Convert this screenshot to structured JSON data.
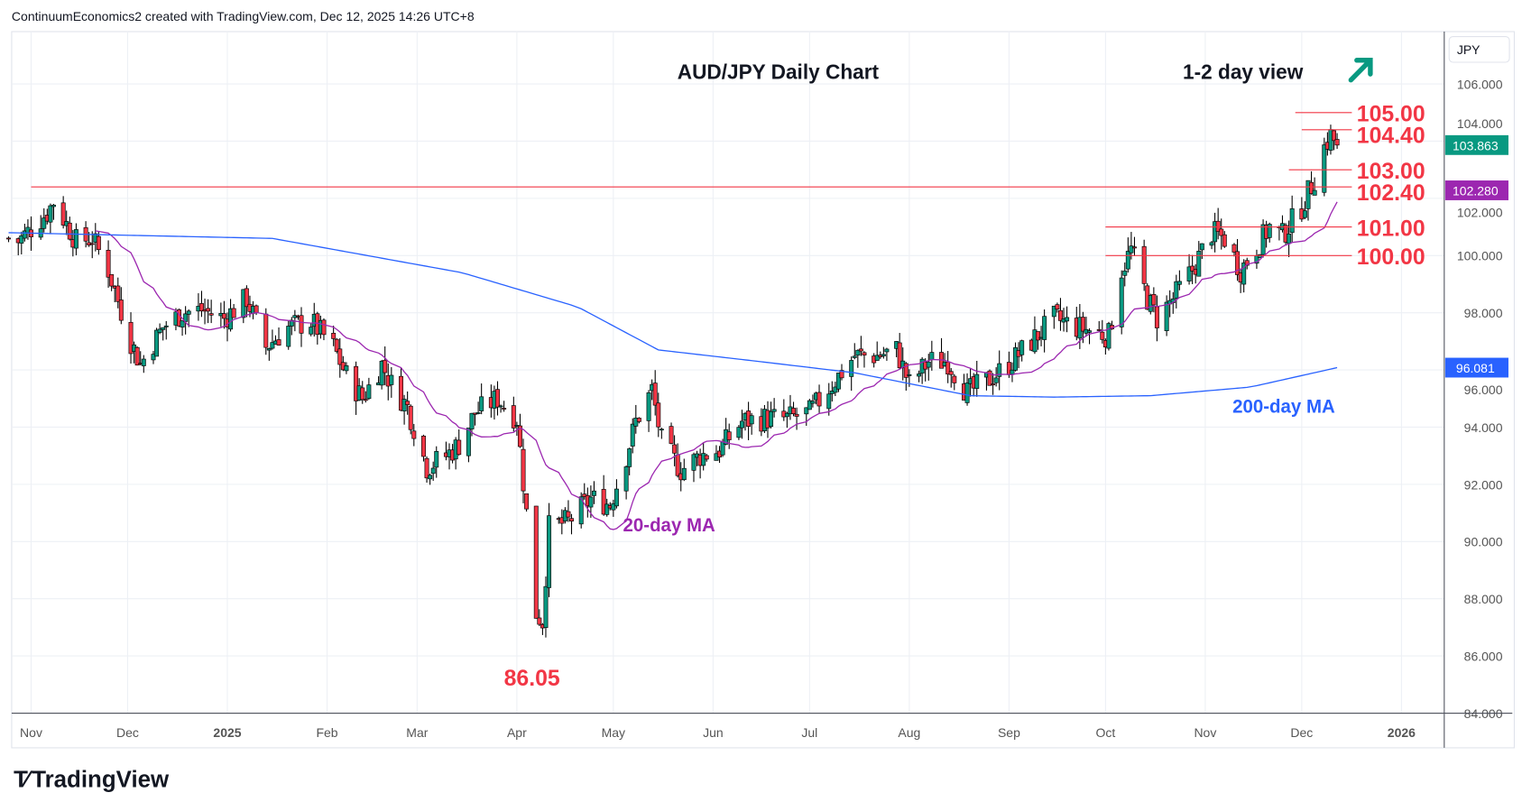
{
  "header": {
    "text": "ContinuumEconomics2 created with TradingView.com, Dec 12, 2025 14:26 UTC+8"
  },
  "brand": {
    "name": "TradingView"
  },
  "colors": {
    "up": "#089981",
    "down": "#f23645",
    "ma20": "#9c27b0",
    "ma200": "#2962ff",
    "level": "#f23645",
    "arrow": "#089981"
  },
  "chart_data": {
    "type": "candlestick",
    "title": "AUD/JPY Daily Chart",
    "view_label": "1-2 day view",
    "view_direction": "up",
    "currency": "JPY",
    "ylim": [
      84,
      107
    ],
    "y_ticks": [
      "106.000",
      "104.000",
      "102.000",
      "100.000",
      "98.000",
      "96.000",
      "94.000",
      "92.000",
      "90.000",
      "88.000",
      "86.000",
      "84.000"
    ],
    "y_tick_values": [
      106,
      104,
      102,
      100,
      98,
      96,
      94,
      92,
      90,
      88,
      86,
      84
    ],
    "x_ticks": [
      {
        "label": "Nov",
        "date": "2024-11-01"
      },
      {
        "label": "Dec",
        "date": "2024-12-01"
      },
      {
        "label": "2025",
        "date": "2025-01-01",
        "bold": true
      },
      {
        "label": "Feb",
        "date": "2025-02-01"
      },
      {
        "label": "Mar",
        "date": "2025-03-01"
      },
      {
        "label": "Apr",
        "date": "2025-04-01"
      },
      {
        "label": "May",
        "date": "2025-05-01"
      },
      {
        "label": "Jun",
        "date": "2025-06-01"
      },
      {
        "label": "Jul",
        "date": "2025-07-01"
      },
      {
        "label": "Aug",
        "date": "2025-08-01"
      },
      {
        "label": "Sep",
        "date": "2025-09-01"
      },
      {
        "label": "Oct",
        "date": "2025-10-01"
      },
      {
        "label": "Nov",
        "date": "2025-11-01"
      },
      {
        "label": "Dec",
        "date": "2025-12-01"
      },
      {
        "label": "2026",
        "date": "2026-01-01",
        "bold": true
      }
    ],
    "close_keypoints": [
      [
        "2024-10-25",
        100.6
      ],
      [
        "2024-10-28",
        100.5
      ],
      [
        "2024-11-06",
        101.5
      ],
      [
        "2024-11-08",
        101.9
      ],
      [
        "2024-11-15",
        100.5
      ],
      [
        "2024-11-20",
        100.6
      ],
      [
        "2024-11-25",
        99.5
      ],
      [
        "2024-12-02",
        97
      ],
      [
        "2024-12-05",
        96.2
      ],
      [
        "2024-12-12",
        97.5
      ],
      [
        "2024-12-18",
        98
      ],
      [
        "2024-12-24",
        98.1
      ],
      [
        "2024-12-31",
        97.8
      ],
      [
        "2025-01-07",
        98.5
      ],
      [
        "2025-01-13",
        96.8
      ],
      [
        "2025-01-20",
        97.5
      ],
      [
        "2025-01-27",
        97.7
      ],
      [
        "2025-02-03",
        96.8
      ],
      [
        "2025-02-07",
        95.8
      ],
      [
        "2025-02-12",
        95
      ],
      [
        "2025-02-18",
        96.2
      ],
      [
        "2025-02-21",
        95.5
      ],
      [
        "2025-02-26",
        94.7
      ],
      [
        "2025-03-04",
        92.6
      ],
      [
        "2025-03-10",
        93
      ],
      [
        "2025-03-14",
        93.4
      ],
      [
        "2025-03-19",
        94.5
      ],
      [
        "2025-03-26",
        95
      ],
      [
        "2025-04-01",
        94.3
      ],
      [
        "2025-04-04",
        91
      ],
      [
        "2025-04-07",
        87.5
      ],
      [
        "2025-04-09",
        87.2
      ],
      [
        "2025-04-11",
        90.5
      ],
      [
        "2025-04-17",
        90.7
      ],
      [
        "2025-04-24",
        91.5
      ],
      [
        "2025-04-30",
        91.3
      ],
      [
        "2025-05-05",
        93
      ],
      [
        "2025-05-08",
        94.2
      ],
      [
        "2025-05-13",
        95.3
      ],
      [
        "2025-05-16",
        93.5
      ],
      [
        "2025-05-22",
        92.5
      ],
      [
        "2025-05-28",
        93
      ],
      [
        "2025-06-03",
        93.2
      ],
      [
        "2025-06-10",
        94.2
      ],
      [
        "2025-06-17",
        94.3
      ],
      [
        "2025-06-24",
        94.3
      ],
      [
        "2025-07-01",
        94.5
      ],
      [
        "2025-07-08",
        95.5
      ],
      [
        "2025-07-15",
        96.5
      ],
      [
        "2025-07-22",
        96.5
      ],
      [
        "2025-07-28",
        96.7
      ],
      [
        "2025-08-01",
        95.5
      ],
      [
        "2025-08-07",
        96.3
      ],
      [
        "2025-08-13",
        96.3
      ],
      [
        "2025-08-19",
        95.2
      ],
      [
        "2025-08-25",
        95.6
      ],
      [
        "2025-09-01",
        96.2
      ],
      [
        "2025-09-08",
        97
      ],
      [
        "2025-09-15",
        97.8
      ],
      [
        "2025-09-22",
        97.5
      ],
      [
        "2025-09-29",
        97.3
      ],
      [
        "2025-10-02",
        97.2
      ],
      [
        "2025-10-06",
        99.5
      ],
      [
        "2025-10-09",
        100.2
      ],
      [
        "2025-10-14",
        98.5
      ],
      [
        "2025-10-17",
        97.8
      ],
      [
        "2025-10-22",
        98.5
      ],
      [
        "2025-10-28",
        99.5
      ],
      [
        "2025-11-03",
        100.8
      ],
      [
        "2025-11-07",
        100.6
      ],
      [
        "2025-11-12",
        99.5
      ],
      [
        "2025-11-17",
        100.3
      ],
      [
        "2025-11-21",
        101
      ],
      [
        "2025-11-25",
        100.7
      ],
      [
        "2025-12-01",
        101.7
      ],
      [
        "2025-12-05",
        102.7
      ],
      [
        "2025-12-08",
        103.8
      ],
      [
        "2025-12-10",
        104.2
      ],
      [
        "2025-12-12",
        103.863
      ]
    ],
    "ma200_keypoints": [
      [
        "2024-10-25",
        100.8
      ],
      [
        "2025-01-15",
        100.6
      ],
      [
        "2025-03-15",
        99.4
      ],
      [
        "2025-04-20",
        98.2
      ],
      [
        "2025-05-15",
        96.7
      ],
      [
        "2025-06-15",
        96.3
      ],
      [
        "2025-07-15",
        95.9
      ],
      [
        "2025-08-20",
        95.1
      ],
      [
        "2025-09-15",
        95.05
      ],
      [
        "2025-10-15",
        95.1
      ],
      [
        "2025-11-15",
        95.4
      ],
      [
        "2025-12-12",
        96.081
      ]
    ],
    "last_price": "103.863",
    "ma20_last": "102.280",
    "ma200_last": "96.081",
    "levels": [
      {
        "value": 105.0,
        "label": "105.00",
        "from": "2025-11-29"
      },
      {
        "value": 104.4,
        "label": "104.40",
        "from": "2025-12-01"
      },
      {
        "value": 103.0,
        "label": "103.00",
        "from": "2025-11-27"
      },
      {
        "value": 102.4,
        "label": "102.40",
        "from": "2024-11-01"
      },
      {
        "value": 101.0,
        "label": "101.00",
        "from": "2025-10-01"
      },
      {
        "value": 100.0,
        "label": "100.00",
        "from": "2025-10-01"
      }
    ],
    "annotations": {
      "low": {
        "label": "86.05",
        "value": 86.05,
        "date": "2025-04-09"
      },
      "ma20": "20-day MA",
      "ma200": "200-day MA"
    }
  }
}
